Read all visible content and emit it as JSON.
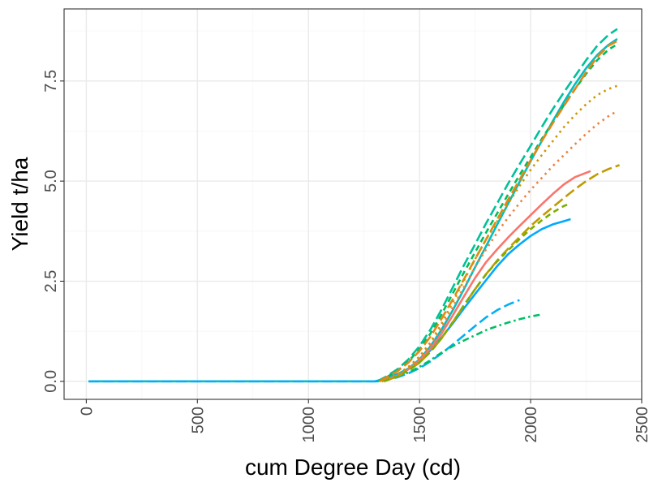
{
  "chart_data": {
    "type": "line",
    "title": "",
    "xlabel": "cum Degree Day (cd)",
    "ylabel": "Yield t/ha",
    "xlim": [
      -100,
      2500
    ],
    "ylim": [
      -0.45,
      9.3
    ],
    "x_ticks": [
      0,
      500,
      1000,
      1500,
      2000,
      2500
    ],
    "x_tick_labels": [
      "0",
      "500",
      "1000",
      "1500",
      "2000",
      "2500"
    ],
    "y_ticks": [
      0,
      2.5,
      5,
      7.5
    ],
    "y_tick_labels": [
      "0.0",
      "2.5",
      "5.0",
      "7.5"
    ],
    "x_tick_label_rotation": "vertical",
    "y_tick_label_rotation": "vertical",
    "grid": true,
    "legend": "none",
    "theme": {
      "background": "#ffffff",
      "grid_major": "#ebebeb",
      "grid_minor": "#f5f5f5",
      "border": "#333333",
      "tick_text": "#4d4d4d"
    },
    "series": [
      {
        "color": "#00bfc4",
        "dash": "solid",
        "x": [
          10,
          1310,
          1350,
          1400,
          1450,
          1500,
          1550,
          1600,
          1650,
          1700,
          1750,
          1800,
          1850,
          1900,
          1950,
          2000,
          2050,
          2100,
          2150,
          2200,
          2250,
          2300,
          2350,
          2390
        ],
        "y": [
          0,
          0,
          0.08,
          0.18,
          0.32,
          0.55,
          0.88,
          1.3,
          1.78,
          2.3,
          2.85,
          3.38,
          3.92,
          4.45,
          4.98,
          5.5,
          6.0,
          6.5,
          6.98,
          7.42,
          7.82,
          8.15,
          8.4,
          8.55
        ]
      },
      {
        "color": "#00b0f6",
        "dash": "long-dash",
        "x": [
          10,
          1300,
          1350,
          1400,
          1450,
          1500,
          1550,
          1600,
          1650,
          1700,
          1750,
          1800,
          1850,
          1900,
          1950
        ],
        "y": [
          0,
          0,
          0.04,
          0.1,
          0.2,
          0.33,
          0.5,
          0.7,
          0.92,
          1.15,
          1.38,
          1.6,
          1.78,
          1.92,
          2.03
        ]
      },
      {
        "color": "#00a9ff",
        "dash": "solid",
        "x": [
          1300,
          1350,
          1400,
          1450,
          1500,
          1550,
          1600,
          1650,
          1700,
          1750,
          1800,
          1850,
          1900,
          1950,
          2000,
          2050,
          2100,
          2150,
          2180
        ],
        "y": [
          0,
          0.07,
          0.16,
          0.3,
          0.5,
          0.78,
          1.1,
          1.45,
          1.82,
          2.18,
          2.53,
          2.88,
          3.18,
          3.42,
          3.63,
          3.8,
          3.92,
          4.0,
          4.05
        ]
      },
      {
        "color": "#00be67",
        "dash": "dotdash",
        "x": [
          1310,
          1350,
          1400,
          1450,
          1500,
          1550,
          1600,
          1650,
          1700,
          1750,
          1800,
          1850,
          1900,
          1950,
          2000,
          2050
        ],
        "y": [
          0,
          0.05,
          0.12,
          0.22,
          0.36,
          0.53,
          0.72,
          0.88,
          1.02,
          1.15,
          1.28,
          1.38,
          1.47,
          1.55,
          1.62,
          1.67
        ]
      },
      {
        "color": "#00c19a",
        "dash": "long-dash",
        "x": [
          1310,
          1350,
          1400,
          1450,
          1500,
          1550,
          1600,
          1650,
          1700,
          1750,
          1800,
          1850,
          1900,
          1950,
          2000,
          2050,
          2100,
          2150,
          2200,
          2250,
          2300,
          2350,
          2390
        ],
        "y": [
          0,
          0.12,
          0.3,
          0.55,
          0.88,
          1.3,
          1.8,
          2.35,
          2.9,
          3.42,
          3.95,
          4.45,
          4.95,
          5.42,
          5.88,
          6.35,
          6.8,
          7.22,
          7.62,
          8.02,
          8.38,
          8.65,
          8.8
        ]
      },
      {
        "color": "#00bd5c",
        "dash": "dashed",
        "x": [
          1320,
          1350,
          1400,
          1450,
          1500,
          1550,
          1600,
          1650,
          1700,
          1750,
          1800,
          1850,
          1900,
          1950,
          2000,
          2050,
          2100,
          2150,
          2200,
          2250,
          2300,
          2350,
          2390
        ],
        "y": [
          0,
          0.1,
          0.26,
          0.5,
          0.8,
          1.2,
          1.68,
          2.2,
          2.72,
          3.22,
          3.72,
          4.2,
          4.68,
          5.15,
          5.6,
          6.05,
          6.48,
          6.9,
          7.3,
          7.68,
          8.02,
          8.28,
          8.42
        ]
      },
      {
        "color": "#e68613",
        "dash": "long-dash",
        "x": [
          1320,
          1350,
          1400,
          1450,
          1500,
          1550,
          1600,
          1650,
          1700,
          1750,
          1800,
          1850,
          1900,
          1950,
          2000,
          2050,
          2100,
          2150,
          2200,
          2250,
          2300,
          2350,
          2390
        ],
        "y": [
          0,
          0.1,
          0.25,
          0.47,
          0.76,
          1.12,
          1.57,
          2.05,
          2.55,
          3.05,
          3.55,
          4.05,
          4.55,
          5.03,
          5.52,
          6.0,
          6.45,
          6.88,
          7.3,
          7.72,
          8.1,
          8.38,
          8.5
        ]
      },
      {
        "color": "#f8766d",
        "dash": "solid",
        "x": [
          1330,
          1400,
          1450,
          1500,
          1550,
          1600,
          1650,
          1700,
          1750,
          1800,
          1850,
          1900,
          1950,
          2000,
          2050,
          2100,
          2150,
          2200,
          2270
        ],
        "y": [
          0,
          0.14,
          0.3,
          0.52,
          0.82,
          1.2,
          1.65,
          2.12,
          2.58,
          2.98,
          3.3,
          3.6,
          3.88,
          4.15,
          4.42,
          4.68,
          4.92,
          5.1,
          5.25
        ]
      },
      {
        "color": "#ed8141",
        "dash": "dotted",
        "x": [
          1330,
          1400,
          1450,
          1500,
          1550,
          1600,
          1650,
          1700,
          1750,
          1800,
          1850,
          1900,
          1950,
          2000,
          2050,
          2100,
          2150,
          2200,
          2250,
          2300,
          2350,
          2390
        ],
        "y": [
          0,
          0.16,
          0.34,
          0.58,
          0.92,
          1.35,
          1.85,
          2.35,
          2.85,
          3.3,
          3.72,
          4.1,
          4.45,
          4.78,
          5.08,
          5.38,
          5.65,
          5.92,
          6.18,
          6.42,
          6.62,
          6.75
        ]
      },
      {
        "color": "#cd9600",
        "dash": "dotted",
        "x": [
          1330,
          1400,
          1450,
          1500,
          1550,
          1600,
          1650,
          1700,
          1750,
          1800,
          1850,
          1900,
          1950,
          2000,
          2050,
          2100,
          2150,
          2200,
          2250,
          2300,
          2350,
          2390
        ],
        "y": [
          0,
          0.17,
          0.36,
          0.62,
          0.98,
          1.45,
          1.98,
          2.52,
          3.05,
          3.55,
          4.0,
          4.45,
          4.88,
          5.28,
          5.65,
          6.0,
          6.35,
          6.65,
          6.92,
          7.15,
          7.3,
          7.38
        ]
      },
      {
        "color": "#c09b00",
        "dash": "long-dash",
        "x": [
          1340,
          1400,
          1450,
          1500,
          1550,
          1600,
          1650,
          1700,
          1750,
          1800,
          1850,
          1900,
          1950,
          2000,
          2050,
          2100,
          2150,
          2200,
          2250,
          2300,
          2350,
          2400
        ],
        "y": [
          0,
          0.12,
          0.27,
          0.47,
          0.74,
          1.08,
          1.48,
          1.9,
          2.3,
          2.68,
          3.02,
          3.32,
          3.6,
          3.88,
          4.12,
          4.35,
          4.58,
          4.8,
          5.0,
          5.17,
          5.3,
          5.4
        ]
      },
      {
        "color": "#7cae00",
        "dash": "dashed",
        "x": [
          1340,
          1400,
          1450,
          1500,
          1550,
          1600,
          1650,
          1700,
          1750,
          1800,
          1850,
          1900,
          1950,
          2000,
          2050,
          2100,
          2150,
          2170
        ],
        "y": [
          0,
          0.12,
          0.27,
          0.47,
          0.74,
          1.08,
          1.48,
          1.9,
          2.3,
          2.68,
          3.0,
          3.28,
          3.55,
          3.8,
          4.02,
          4.22,
          4.38,
          4.42
        ]
      }
    ]
  }
}
